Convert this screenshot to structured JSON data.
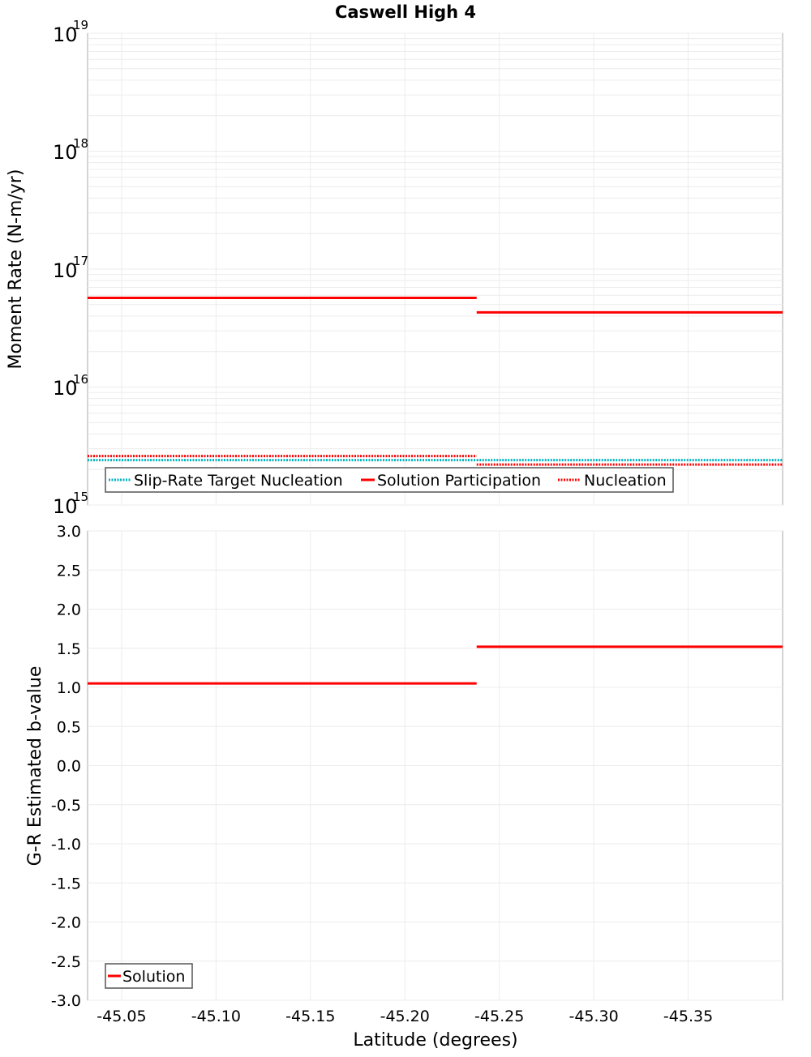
{
  "title": "Caswell High 4",
  "colors": {
    "solution": "#ff0000",
    "nucleation": "#ff0000",
    "target": "#00b3c0",
    "grid": "#e6e6e6",
    "frame": "#aaaaaa"
  },
  "chart_data": [
    {
      "type": "line",
      "title": "Caswell High 4",
      "xlabel": "Latitude (degrees)",
      "ylabel": "Moment Rate (N-m/yr)",
      "yscale": "log",
      "ylim": [
        1000000000000000.0,
        1e+19
      ],
      "xlim": [
        -45.032,
        -45.4
      ],
      "x_inverted": true,
      "grid": true,
      "legend_position": "bottom-left",
      "yticks": [
        "10^15",
        "10^16",
        "10^17",
        "10^18",
        "10^19"
      ],
      "series": [
        {
          "name": "Slip-Rate Target Nucleation",
          "style": "dotted",
          "color": "#00b3c0",
          "x": [
            -45.032,
            -45.238,
            -45.238,
            -45.4
          ],
          "values": [
            2400000000000000.0,
            2400000000000000.0,
            2400000000000000.0,
            2400000000000000.0
          ]
        },
        {
          "name": "Solution Participation",
          "style": "solid",
          "color": "#ff0000",
          "x": [
            -45.032,
            -45.238,
            -45.238,
            -45.4
          ],
          "values": [
            5.7e+16,
            5.7e+16,
            4.3e+16,
            4.3e+16
          ]
        },
        {
          "name": "Nucleation",
          "style": "dotted",
          "color": "#ff0000",
          "x": [
            -45.032,
            -45.238,
            -45.238,
            -45.4
          ],
          "values": [
            2600000000000000.0,
            2600000000000000.0,
            2200000000000000.0,
            2200000000000000.0
          ]
        }
      ]
    },
    {
      "type": "line",
      "xlabel": "Latitude (degrees)",
      "ylabel": "G-R Estimated b-value",
      "ylim": [
        -3.0,
        3.0
      ],
      "xlim": [
        -45.032,
        -45.4
      ],
      "x_inverted": true,
      "grid": true,
      "legend_position": "bottom-left",
      "xticks": [
        "-45.05",
        "-45.10",
        "-45.15",
        "-45.20",
        "-45.25",
        "-45.30",
        "-45.35"
      ],
      "yticks": [
        "3.0",
        "2.5",
        "2.0",
        "1.5",
        "1.0",
        "0.5",
        "0.0",
        "-0.5",
        "-1.0",
        "-1.5",
        "-2.0",
        "-2.5",
        "-3.0"
      ],
      "series": [
        {
          "name": "Solution",
          "style": "solid",
          "color": "#ff0000",
          "x": [
            -45.032,
            -45.238,
            -45.238,
            -45.4
          ],
          "values": [
            1.05,
            1.05,
            1.52,
            1.52
          ]
        }
      ]
    }
  ],
  "top": {
    "ylabel": "Moment Rate (N-m/yr)",
    "yticks": [
      {
        "base": "10",
        "exp": "19"
      },
      {
        "base": "10",
        "exp": "18"
      },
      {
        "base": "10",
        "exp": "17"
      },
      {
        "base": "10",
        "exp": "16"
      },
      {
        "base": "10",
        "exp": "15"
      }
    ],
    "legend": [
      "Slip-Rate Target Nucleation",
      "Solution Participation",
      "Nucleation"
    ]
  },
  "bottom": {
    "ylabel": "G-R Estimated b-value",
    "yticks": [
      "3.0",
      "2.5",
      "2.0",
      "1.5",
      "1.0",
      "0.5",
      "0.0",
      "-0.5",
      "-1.0",
      "-1.5",
      "-2.0",
      "-2.5",
      "-3.0"
    ],
    "legend": [
      "Solution"
    ]
  },
  "xaxis": {
    "label": "Latitude (degrees)",
    "ticks": [
      "-45.05",
      "-45.10",
      "-45.15",
      "-45.20",
      "-45.25",
      "-45.30",
      "-45.35"
    ]
  }
}
